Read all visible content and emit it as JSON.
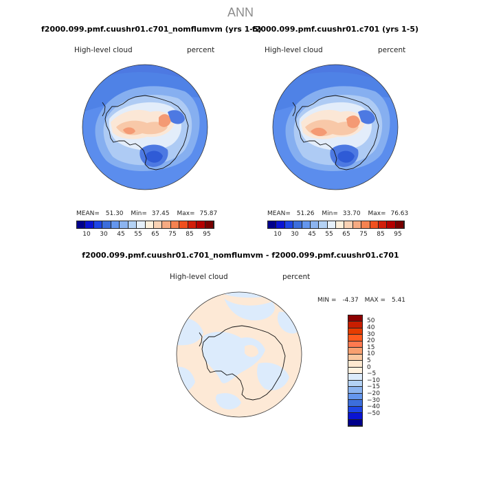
{
  "title": "ANN",
  "colors": {
    "sequential": [
      "#00008c",
      "#0a14d2",
      "#1e46e6",
      "#3c6edc",
      "#6496ee",
      "#8cb4f0",
      "#b4d2f5",
      "#e6f0fa",
      "#fff0dc",
      "#fad2b4",
      "#f6aa82",
      "#f58250",
      "#f0501e",
      "#d21e0a",
      "#b40000",
      "#780000"
    ],
    "difference": [
      "#8c0000",
      "#c81e00",
      "#e63c00",
      "#ff5a1e",
      "#ff7a50",
      "#f8a070",
      "#fac8a0",
      "#fde8d0",
      "#fff2e0",
      "#dcebfc",
      "#b4d2f5",
      "#8cb4f0",
      "#6496ee",
      "#3c6edc",
      "#1e46e6",
      "#0a14d2",
      "#00008c"
    ]
  },
  "panels": [
    {
      "case": "f2000.099.pmf.cuushr01.c701_nomflumvm (yrs 1-5)",
      "variable": "High-level cloud",
      "units": "percent",
      "stats": {
        "mean_label": "MEAN=",
        "mean": "51.30",
        "min_label": "Min=",
        "min": "37.45",
        "max_label": "Max=",
        "max": "75.87"
      },
      "ticks": [
        "10",
        "30",
        "45",
        "55",
        "65",
        "75",
        "85",
        "95"
      ]
    },
    {
      "case": "f2000.099.pmf.cuushr01.c701 (yrs 1-5)",
      "variable": "High-level cloud",
      "units": "percent",
      "stats": {
        "mean_label": "MEAN=",
        "mean": "51.26",
        "min_label": "Min=",
        "min": "33.70",
        "max_label": "Max=",
        "max": "76.63"
      },
      "ticks": [
        "10",
        "30",
        "45",
        "55",
        "65",
        "75",
        "85",
        "95"
      ]
    }
  ],
  "difference": {
    "case": "f2000.099.pmf.cuushr01.c701_nomflumvm - f2000.099.pmf.cuushr01.c701",
    "variable": "High-level cloud",
    "units": "percent",
    "stats": {
      "min_label": "MIN =",
      "min": "-4.37",
      "max_label": "MAX =",
      "max": "5.41"
    },
    "ticks": [
      "50",
      "40",
      "30",
      "20",
      "15",
      "10",
      "5",
      "0",
      "−5",
      "−10",
      "−15",
      "−20",
      "−30",
      "−40",
      "−50"
    ]
  }
}
